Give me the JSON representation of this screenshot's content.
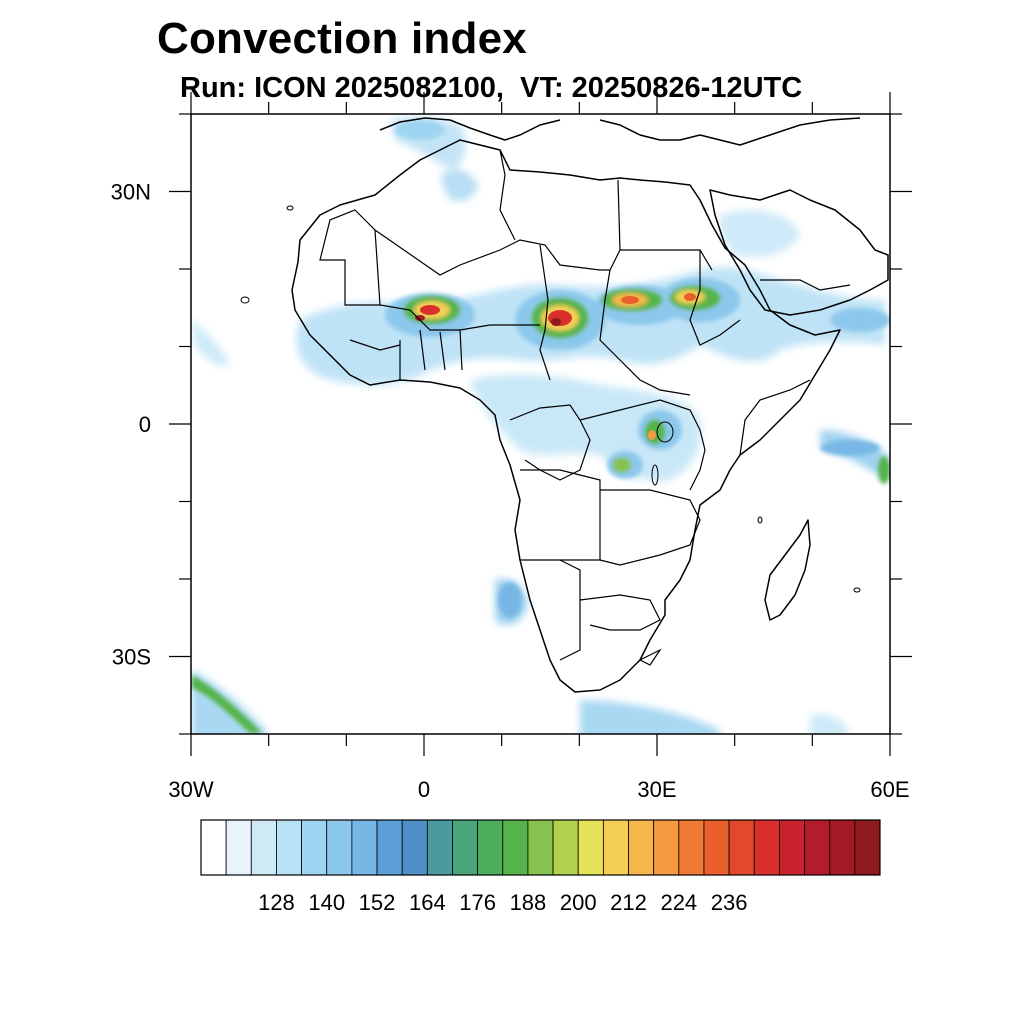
{
  "title": "Convection index",
  "subtitle": "Run: ICON 2025082100,  VT: 20250826-12UTC",
  "map": {
    "lon_range": [
      -30,
      60
    ],
    "lat_range": [
      -40,
      40
    ],
    "x_ticks": [
      {
        "value": -30,
        "label": "30W"
      },
      {
        "value": 0,
        "label": "0"
      },
      {
        "value": 30,
        "label": "30E"
      },
      {
        "value": 60,
        "label": "60E"
      }
    ],
    "y_ticks": [
      {
        "value": 30,
        "label": "30N"
      },
      {
        "value": 0,
        "label": "0"
      },
      {
        "value": -30,
        "label": "30S"
      }
    ]
  },
  "colorbar": {
    "labels": [
      "128",
      "140",
      "152",
      "164",
      "176",
      "188",
      "200",
      "212",
      "224",
      "236"
    ],
    "colors": [
      "#ffffff",
      "#e8f4fb",
      "#cfe9f7",
      "#b8e1f5",
      "#9fd5f2",
      "#8cc8ec",
      "#78b7e5",
      "#5c9fd6",
      "#4d8fc6",
      "#4a9aa0",
      "#4aa67a",
      "#4cad5a",
      "#55b34a",
      "#86c24e",
      "#b3d14f",
      "#e6e25a",
      "#f4cf55",
      "#f5b64a",
      "#f59a3f",
      "#ef7a33",
      "#e9602e",
      "#e2492c",
      "#d92f2d",
      "#c9232e",
      "#b51c2b",
      "#a31a25",
      "#8f1a1e"
    ]
  },
  "chart_data": {
    "type": "heatmap",
    "title": "Convection index",
    "subtitle": "Run: ICON 2025082100,  VT: 20250826-12UTC",
    "x_range_lon": [
      -30,
      60
    ],
    "y_range_lat": [
      -40,
      40
    ],
    "colorbar_ticks": [
      128,
      140,
      152,
      164,
      176,
      188,
      200,
      212,
      224,
      236
    ],
    "hotspots": [
      {
        "lon": 1,
        "lat": 14,
        "peak": "230"
      },
      {
        "lon": 16,
        "lat": 13,
        "peak": "236"
      },
      {
        "lon": 26,
        "lat": 16,
        "peak": "212"
      },
      {
        "lon": 34,
        "lat": 16,
        "peak": "200"
      },
      {
        "lon": 29,
        "lat": -1,
        "peak": "200"
      },
      {
        "lon": 25,
        "lat": -5,
        "peak": "176"
      }
    ]
  }
}
